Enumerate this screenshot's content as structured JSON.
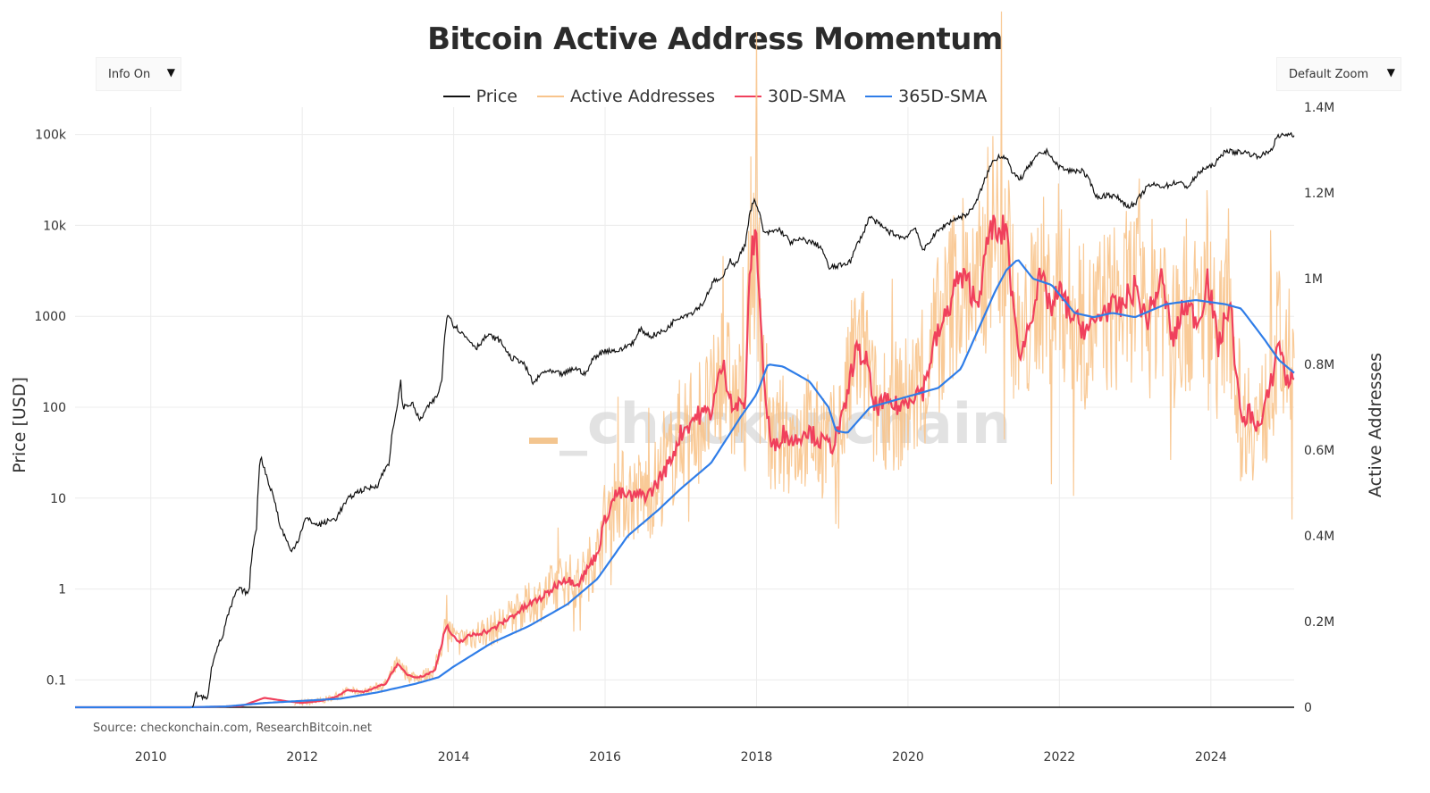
{
  "title": "Bitcoin Active Address Momentum",
  "controls": {
    "info_label": "Info On",
    "zoom_label": "Default Zoom",
    "dropdown_arrow": "▼"
  },
  "watermark": "_checkonchain",
  "source": "Source: checkonchain.com, ResearchBitcoin.net",
  "colors": {
    "price": "#111111",
    "active_addresses": "#f8c48c",
    "sma30": "#f0405c",
    "sma365": "#2f7de8",
    "grid": "#ececec",
    "watermark": "#d9d9d9",
    "watermark_accent": "#f3c58f"
  },
  "chart_data": {
    "type": "line",
    "title": "Bitcoin Active Address Momentum",
    "x_axis": {
      "range": [
        2009.0,
        2025.1
      ],
      "ticks": [
        2010,
        2012,
        2014,
        2016,
        2018,
        2020,
        2022,
        2024
      ],
      "tick_labels": [
        "2010",
        "2012",
        "2014",
        "2016",
        "2018",
        "2020",
        "2022",
        "2024"
      ]
    },
    "y_left": {
      "label": "Price [USD]",
      "scale": "log",
      "range": [
        0.05,
        200000
      ],
      "ticks": [
        0.1,
        1,
        10,
        100,
        1000,
        10000,
        100000
      ],
      "tick_labels": [
        "0.1",
        "1",
        "10",
        "100",
        "1000",
        "10k",
        "100k"
      ]
    },
    "y_right": {
      "label": "Active Addresses",
      "scale": "linear",
      "range": [
        0,
        1400000
      ],
      "ticks": [
        0,
        200000,
        400000,
        600000,
        800000,
        1000000,
        1200000,
        1400000
      ],
      "tick_labels": [
        "0",
        "0.2M",
        "0.4M",
        "0.6M",
        "0.8M",
        "1M",
        "1.2M",
        "1.4M"
      ]
    },
    "legend": {
      "position": "top-center",
      "entries": [
        "Price",
        "Active Addresses",
        "30D-SMA",
        "365D-SMA"
      ]
    },
    "series": [
      {
        "name": "Price",
        "axis": "left",
        "points": [
          [
            2010.55,
            0.05
          ],
          [
            2010.6,
            0.07
          ],
          [
            2010.75,
            0.06
          ],
          [
            2010.85,
            0.2
          ],
          [
            2010.95,
            0.3
          ],
          [
            2011.05,
            0.6
          ],
          [
            2011.15,
            1.0
          ],
          [
            2011.3,
            0.9
          ],
          [
            2011.4,
            5
          ],
          [
            2011.45,
            28
          ],
          [
            2011.55,
            15
          ],
          [
            2011.7,
            5
          ],
          [
            2011.85,
            2.5
          ],
          [
            2011.95,
            3.5
          ],
          [
            2012.05,
            6
          ],
          [
            2012.2,
            5
          ],
          [
            2012.45,
            6
          ],
          [
            2012.62,
            10
          ],
          [
            2012.75,
            12
          ],
          [
            2012.9,
            13
          ],
          [
            2013.0,
            14
          ],
          [
            2013.15,
            25
          ],
          [
            2013.25,
            90
          ],
          [
            2013.3,
            200
          ],
          [
            2013.32,
            100
          ],
          [
            2013.45,
            110
          ],
          [
            2013.55,
            70
          ],
          [
            2013.7,
            110
          ],
          [
            2013.78,
            130
          ],
          [
            2013.85,
            200
          ],
          [
            2013.92,
            1100
          ],
          [
            2014.0,
            800
          ],
          [
            2014.15,
            600
          ],
          [
            2014.3,
            450
          ],
          [
            2014.45,
            620
          ],
          [
            2014.6,
            550
          ],
          [
            2014.75,
            350
          ],
          [
            2014.9,
            320
          ],
          [
            2015.05,
            180
          ],
          [
            2015.2,
            250
          ],
          [
            2015.45,
            230
          ],
          [
            2015.6,
            270
          ],
          [
            2015.75,
            230
          ],
          [
            2015.85,
            350
          ],
          [
            2016.0,
            420
          ],
          [
            2016.2,
            420
          ],
          [
            2016.4,
            540
          ],
          [
            2016.46,
            720
          ],
          [
            2016.6,
            600
          ],
          [
            2016.8,
            700
          ],
          [
            2016.95,
            960
          ],
          [
            2017.15,
            1100
          ],
          [
            2017.3,
            1400
          ],
          [
            2017.45,
            2500
          ],
          [
            2017.55,
            2500
          ],
          [
            2017.65,
            4200
          ],
          [
            2017.72,
            3600
          ],
          [
            2017.85,
            6000
          ],
          [
            2017.96,
            19000
          ],
          [
            2018.03,
            14000
          ],
          [
            2018.1,
            8000
          ],
          [
            2018.3,
            9000
          ],
          [
            2018.45,
            6500
          ],
          [
            2018.6,
            7000
          ],
          [
            2018.75,
            6400
          ],
          [
            2018.85,
            5800
          ],
          [
            2018.95,
            3400
          ],
          [
            2019.1,
            3600
          ],
          [
            2019.25,
            4100
          ],
          [
            2019.42,
            8500
          ],
          [
            2019.49,
            12500
          ],
          [
            2019.6,
            10500
          ],
          [
            2019.75,
            8500
          ],
          [
            2019.95,
            7200
          ],
          [
            2020.1,
            9500
          ],
          [
            2020.19,
            5000
          ],
          [
            2020.3,
            7000
          ],
          [
            2020.45,
            9500
          ],
          [
            2020.6,
            11500
          ],
          [
            2020.8,
            13500
          ],
          [
            2020.92,
            19000
          ],
          [
            2021.0,
            29000
          ],
          [
            2021.12,
            50000
          ],
          [
            2021.2,
            58000
          ],
          [
            2021.3,
            57000
          ],
          [
            2021.38,
            36000
          ],
          [
            2021.5,
            33000
          ],
          [
            2021.6,
            45000
          ],
          [
            2021.75,
            62000
          ],
          [
            2021.85,
            65000
          ],
          [
            2021.95,
            47000
          ],
          [
            2022.1,
            40000
          ],
          [
            2022.3,
            40000
          ],
          [
            2022.4,
            30000
          ],
          [
            2022.5,
            20000
          ],
          [
            2022.65,
            22000
          ],
          [
            2022.8,
            19500
          ],
          [
            2022.88,
            16500
          ],
          [
            2023.0,
            16800
          ],
          [
            2023.1,
            23000
          ],
          [
            2023.2,
            28000
          ],
          [
            2023.4,
            27000
          ],
          [
            2023.55,
            30000
          ],
          [
            2023.7,
            26500
          ],
          [
            2023.8,
            34000
          ],
          [
            2023.9,
            42000
          ],
          [
            2024.0,
            44000
          ],
          [
            2024.1,
            52000
          ],
          [
            2024.2,
            68000
          ],
          [
            2024.3,
            63000
          ],
          [
            2024.4,
            65000
          ],
          [
            2024.5,
            62000
          ],
          [
            2024.6,
            58000
          ],
          [
            2024.7,
            60000
          ],
          [
            2024.8,
            68000
          ],
          [
            2024.87,
            92000
          ],
          [
            2024.95,
            98000
          ],
          [
            2025.05,
            102000
          ],
          [
            2025.1,
            97000
          ]
        ]
      },
      {
        "name": "30D-SMA",
        "axis": "right",
        "points": [
          [
            2009.0,
            0
          ],
          [
            2010.5,
            0
          ],
          [
            2010.8,
            1000
          ],
          [
            2011.2,
            3000
          ],
          [
            2011.5,
            22000
          ],
          [
            2011.8,
            14000
          ],
          [
            2012.0,
            10000
          ],
          [
            2012.25,
            15000
          ],
          [
            2012.45,
            25000
          ],
          [
            2012.6,
            40000
          ],
          [
            2012.8,
            35000
          ],
          [
            2012.95,
            45000
          ],
          [
            2013.1,
            55000
          ],
          [
            2013.25,
            100000
          ],
          [
            2013.4,
            75000
          ],
          [
            2013.55,
            70000
          ],
          [
            2013.75,
            85000
          ],
          [
            2013.9,
            190000
          ],
          [
            2014.05,
            150000
          ],
          [
            2014.25,
            170000
          ],
          [
            2014.5,
            180000
          ],
          [
            2014.75,
            210000
          ],
          [
            2015.0,
            240000
          ],
          [
            2015.2,
            260000
          ],
          [
            2015.45,
            300000
          ],
          [
            2015.65,
            290000
          ],
          [
            2015.9,
            360000
          ],
          [
            2016.0,
            440000
          ],
          [
            2016.15,
            500000
          ],
          [
            2016.35,
            490000
          ],
          [
            2016.6,
            500000
          ],
          [
            2016.85,
            570000
          ],
          [
            2017.0,
            640000
          ],
          [
            2017.2,
            680000
          ],
          [
            2017.4,
            690000
          ],
          [
            2017.55,
            800000
          ],
          [
            2017.7,
            700000
          ],
          [
            2017.85,
            710000
          ],
          [
            2017.92,
            1050000
          ],
          [
            2018.0,
            1100000
          ],
          [
            2018.1,
            750000
          ],
          [
            2018.2,
            600000
          ],
          [
            2018.35,
            640000
          ],
          [
            2018.5,
            620000
          ],
          [
            2018.65,
            650000
          ],
          [
            2018.85,
            620000
          ],
          [
            2019.0,
            610000
          ],
          [
            2019.15,
            680000
          ],
          [
            2019.3,
            830000
          ],
          [
            2019.45,
            810000
          ],
          [
            2019.55,
            700000
          ],
          [
            2019.7,
            710000
          ],
          [
            2019.9,
            700000
          ],
          [
            2020.05,
            730000
          ],
          [
            2020.2,
            740000
          ],
          [
            2020.35,
            850000
          ],
          [
            2020.5,
            910000
          ],
          [
            2020.65,
            1000000
          ],
          [
            2020.8,
            990000
          ],
          [
            2020.9,
            940000
          ],
          [
            2021.0,
            1020000
          ],
          [
            2021.1,
            1130000
          ],
          [
            2021.2,
            1090000
          ],
          [
            2021.3,
            1130000
          ],
          [
            2021.4,
            900000
          ],
          [
            2021.5,
            820000
          ],
          [
            2021.6,
            900000
          ],
          [
            2021.75,
            1000000
          ],
          [
            2021.9,
            930000
          ],
          [
            2022.0,
            970000
          ],
          [
            2022.2,
            900000
          ],
          [
            2022.4,
            880000
          ],
          [
            2022.6,
            930000
          ],
          [
            2022.8,
            930000
          ],
          [
            2023.0,
            980000
          ],
          [
            2023.15,
            900000
          ],
          [
            2023.35,
            1000000
          ],
          [
            2023.5,
            850000
          ],
          [
            2023.65,
            940000
          ],
          [
            2023.85,
            900000
          ],
          [
            2023.95,
            1010000
          ],
          [
            2024.1,
            840000
          ],
          [
            2024.25,
            950000
          ],
          [
            2024.4,
            660000
          ],
          [
            2024.5,
            690000
          ],
          [
            2024.65,
            650000
          ],
          [
            2024.8,
            760000
          ],
          [
            2024.9,
            860000
          ],
          [
            2025.0,
            760000
          ],
          [
            2025.1,
            770000
          ]
        ]
      },
      {
        "name": "365D-SMA",
        "axis": "right",
        "points": [
          [
            2009.0,
            0
          ],
          [
            2010.5,
            0
          ],
          [
            2011.0,
            2000
          ],
          [
            2011.5,
            10000
          ],
          [
            2012.0,
            15000
          ],
          [
            2012.5,
            20000
          ],
          [
            2013.0,
            35000
          ],
          [
            2013.5,
            55000
          ],
          [
            2013.8,
            70000
          ],
          [
            2014.0,
            95000
          ],
          [
            2014.5,
            150000
          ],
          [
            2015.0,
            190000
          ],
          [
            2015.5,
            240000
          ],
          [
            2015.9,
            300000
          ],
          [
            2016.3,
            400000
          ],
          [
            2016.7,
            460000
          ],
          [
            2017.0,
            510000
          ],
          [
            2017.4,
            570000
          ],
          [
            2017.8,
            680000
          ],
          [
            2018.0,
            730000
          ],
          [
            2018.15,
            800000
          ],
          [
            2018.35,
            795000
          ],
          [
            2018.7,
            760000
          ],
          [
            2018.95,
            700000
          ],
          [
            2019.05,
            645000
          ],
          [
            2019.2,
            640000
          ],
          [
            2019.5,
            700000
          ],
          [
            2019.9,
            720000
          ],
          [
            2020.4,
            745000
          ],
          [
            2020.7,
            790000
          ],
          [
            2020.9,
            870000
          ],
          [
            2021.15,
            970000
          ],
          [
            2021.3,
            1020000
          ],
          [
            2021.45,
            1045000
          ],
          [
            2021.65,
            1000000
          ],
          [
            2021.9,
            985000
          ],
          [
            2022.2,
            920000
          ],
          [
            2022.45,
            910000
          ],
          [
            2022.7,
            920000
          ],
          [
            2023.0,
            910000
          ],
          [
            2023.4,
            940000
          ],
          [
            2023.8,
            950000
          ],
          [
            2024.2,
            940000
          ],
          [
            2024.4,
            930000
          ],
          [
            2024.7,
            860000
          ],
          [
            2024.9,
            810000
          ],
          [
            2025.1,
            780000
          ]
        ]
      },
      {
        "name": "Active Addresses",
        "axis": "right",
        "note": "raw daily series, noisy band around 30D-SMA; peaks near 1.36M (2021), 1.3M (2018), floor near 0.55M (2018-2019, 2024)",
        "points": [
          [
            2012.5,
            45000
          ],
          [
            2013.3,
            130000
          ],
          [
            2013.9,
            230000
          ],
          [
            2015.9,
            420000
          ],
          [
            2016.4,
            600000
          ],
          [
            2017.5,
            930000
          ],
          [
            2017.95,
            1300000
          ],
          [
            2018.2,
            540000
          ],
          [
            2019.35,
            1000000
          ],
          [
            2020.2,
            640000
          ],
          [
            2021.15,
            1360000
          ],
          [
            2021.5,
            600000
          ],
          [
            2022.7,
            1160000
          ],
          [
            2023.8,
            1240000
          ],
          [
            2024.4,
            580000
          ],
          [
            2024.85,
            1000000
          ],
          [
            2025.1,
            720000
          ]
        ]
      }
    ]
  }
}
